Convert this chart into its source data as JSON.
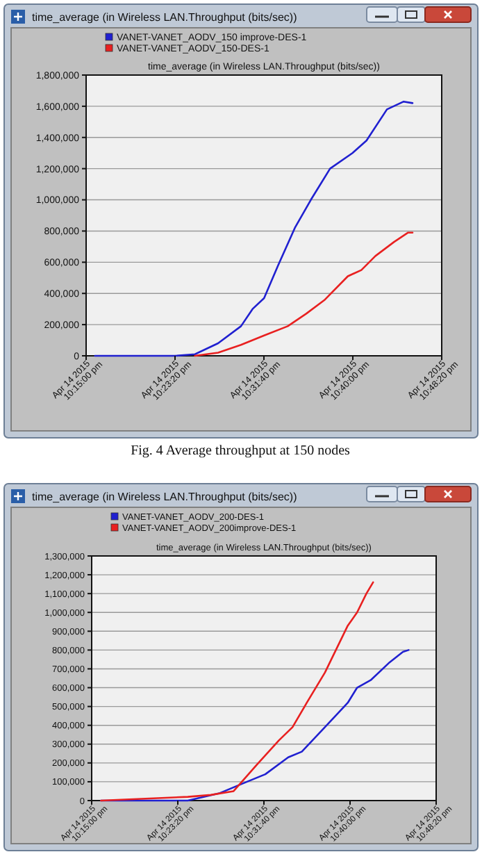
{
  "chart_data": [
    {
      "type": "line",
      "title": "time_average (in Wireless LAN.Throughput (bits/sec))",
      "annotations": [
        "time_average (in Wireless LAN.Throughput (bits/sec))",
        "Fig. 4 Average throughput at 150 nodes"
      ],
      "legend": "top",
      "grid": "y",
      "marker": "none",
      "line_style": "solid",
      "xlim": [
        "2015-04-14T22:15:00",
        "2015-04-14T22:48:20"
      ],
      "xticks": [
        {
          "value": "2015-04-14T22:15:00",
          "label": "Apr 14 2015 10:15:00 pm"
        },
        {
          "value": "2015-04-14T22:23:20",
          "label": "Apr 14 2015 10:23:20 pm"
        },
        {
          "value": "2015-04-14T22:31:40",
          "label": "Apr 14 2015 10:31:40 pm"
        },
        {
          "value": "2015-04-14T22:40:00",
          "label": "Apr 14 2015 10:40:00 pm"
        },
        {
          "value": "2015-04-14T22:48:20",
          "label": "Apr 14 2015 10:48:20 pm"
        }
      ],
      "ylim": [
        0,
        1800000
      ],
      "yticks": [
        {
          "value": 0,
          "label": "0"
        },
        {
          "value": 200000,
          "label": "200,000"
        },
        {
          "value": 400000,
          "label": "400,000"
        },
        {
          "value": 600000,
          "label": "600,000"
        },
        {
          "value": 800000,
          "label": "800,000"
        },
        {
          "value": 1000000,
          "label": "1,000,000"
        },
        {
          "value": 1200000,
          "label": "1,200,000"
        },
        {
          "value": 1400000,
          "label": "1,400,000"
        },
        {
          "value": 1600000,
          "label": "1,600,000"
        },
        {
          "value": 1800000,
          "label": "1,800,000"
        }
      ],
      "series": [
        {
          "name": "VANET-VANET_AODV_150 improve-DES-1",
          "color": "#2020d0",
          "x": [
            "2015-04-14T22:15:50",
            "2015-04-14T22:23:20",
            "2015-04-14T22:25:12",
            "2015-04-14T22:27:22",
            "2015-04-14T22:29:31",
            "2015-04-14T22:30:36",
            "2015-04-14T22:31:41",
            "2015-04-14T22:33:00",
            "2015-04-14T22:34:34",
            "2015-04-14T22:36:04",
            "2015-04-14T22:37:52",
            "2015-04-14T22:39:58",
            "2015-04-14T22:41:17",
            "2015-04-14T22:43:12",
            "2015-04-14T22:44:46",
            "2015-04-14T22:45:36"
          ],
          "values": [
            0,
            0,
            10000,
            80000,
            190000,
            300000,
            370000,
            580000,
            820000,
            1000000,
            1200000,
            1300000,
            1380000,
            1580000,
            1630000,
            1620000
          ]
        },
        {
          "name": "VANET-VANET_AODV_150-DES-1",
          "color": "#e82020",
          "x": [
            "2015-04-14T22:25:12",
            "2015-04-14T22:27:22",
            "2015-04-14T22:29:31",
            "2015-04-14T22:31:41",
            "2015-04-14T22:33:54",
            "2015-04-14T22:35:38",
            "2015-04-14T22:37:23",
            "2015-04-14T22:39:32",
            "2015-04-14T22:40:48",
            "2015-04-14T22:42:07",
            "2015-04-14T22:43:52",
            "2015-04-14T22:45:11",
            "2015-04-14T22:45:36"
          ],
          "values": [
            0,
            20000,
            70000,
            130000,
            190000,
            270000,
            360000,
            510000,
            550000,
            640000,
            730000,
            790000,
            790000
          ]
        }
      ]
    },
    {
      "type": "line",
      "title": "time_average (in Wireless LAN.Throughput (bits/sec))",
      "annotations": [
        "time_average (in Wireless LAN.Throughput (bits/sec))"
      ],
      "legend": "top",
      "grid": "y",
      "marker": "none",
      "line_style": "solid",
      "xlim": [
        "2015-04-14T22:15:00",
        "2015-04-14T22:48:20"
      ],
      "xticks": [
        {
          "value": "2015-04-14T22:15:00",
          "label": "Apr 14 2015 10:15:00 pm"
        },
        {
          "value": "2015-04-14T22:23:20",
          "label": "Apr 14 2015 10:23:20 pm"
        },
        {
          "value": "2015-04-14T22:31:40",
          "label": "Apr 14 2015 10:31:40 pm"
        },
        {
          "value": "2015-04-14T22:40:00",
          "label": "Apr 14 2015 10:40:00 pm"
        },
        {
          "value": "2015-04-14T22:48:20",
          "label": "Apr 14 2015 10:48:20 pm"
        }
      ],
      "ylim": [
        0,
        1300000
      ],
      "yticks": [
        {
          "value": 0,
          "label": "0"
        },
        {
          "value": 100000,
          "label": "100,000"
        },
        {
          "value": 200000,
          "label": "200,000"
        },
        {
          "value": 300000,
          "label": "300,000"
        },
        {
          "value": 400000,
          "label": "400,000"
        },
        {
          "value": 500000,
          "label": "500,000"
        },
        {
          "value": 600000,
          "label": "600,000"
        },
        {
          "value": 700000,
          "label": "700,000"
        },
        {
          "value": 800000,
          "label": "800,000"
        },
        {
          "value": 900000,
          "label": "900,000"
        },
        {
          "value": 1000000,
          "label": "1,000,000"
        },
        {
          "value": 1100000,
          "label": "1,100,000"
        },
        {
          "value": 1200000,
          "label": "1,200,000"
        },
        {
          "value": 1300000,
          "label": "1,300,000"
        }
      ],
      "series": [
        {
          "name": "VANET-VANET_AODV_200-DES-1",
          "color": "#2020d0",
          "x": [
            "2015-04-14T22:15:54",
            "2015-04-14T22:24:18",
            "2015-04-14T22:27:25",
            "2015-04-14T22:29:35",
            "2015-04-14T22:31:48",
            "2015-04-14T22:34:01",
            "2015-04-14T22:35:20",
            "2015-04-14T22:37:34",
            "2015-04-14T22:39:47",
            "2015-04-14T22:40:41",
            "2015-04-14T22:42:00",
            "2015-04-14T22:43:44",
            "2015-04-14T22:45:07",
            "2015-04-14T22:45:40"
          ],
          "values": [
            0,
            0,
            40000,
            90000,
            140000,
            230000,
            260000,
            390000,
            520000,
            600000,
            640000,
            730000,
            790000,
            800000
          ]
        },
        {
          "name": "VANET-VANET_AODV_200improve-DES-1",
          "color": "#e82020",
          "x": [
            "2015-04-14T22:15:54",
            "2015-04-14T22:24:18",
            "2015-04-14T22:26:31",
            "2015-04-14T22:28:44",
            "2015-04-14T22:30:58",
            "2015-04-14T22:33:07",
            "2015-04-14T22:34:26",
            "2015-04-14T22:35:49",
            "2015-04-14T22:37:34",
            "2015-04-14T22:39:47",
            "2015-04-14T22:40:41",
            "2015-04-14T22:41:35",
            "2015-04-14T22:42:14"
          ],
          "values": [
            0,
            20000,
            30000,
            50000,
            190000,
            320000,
            390000,
            520000,
            680000,
            930000,
            1000000,
            1100000,
            1160000
          ]
        }
      ]
    }
  ]
}
